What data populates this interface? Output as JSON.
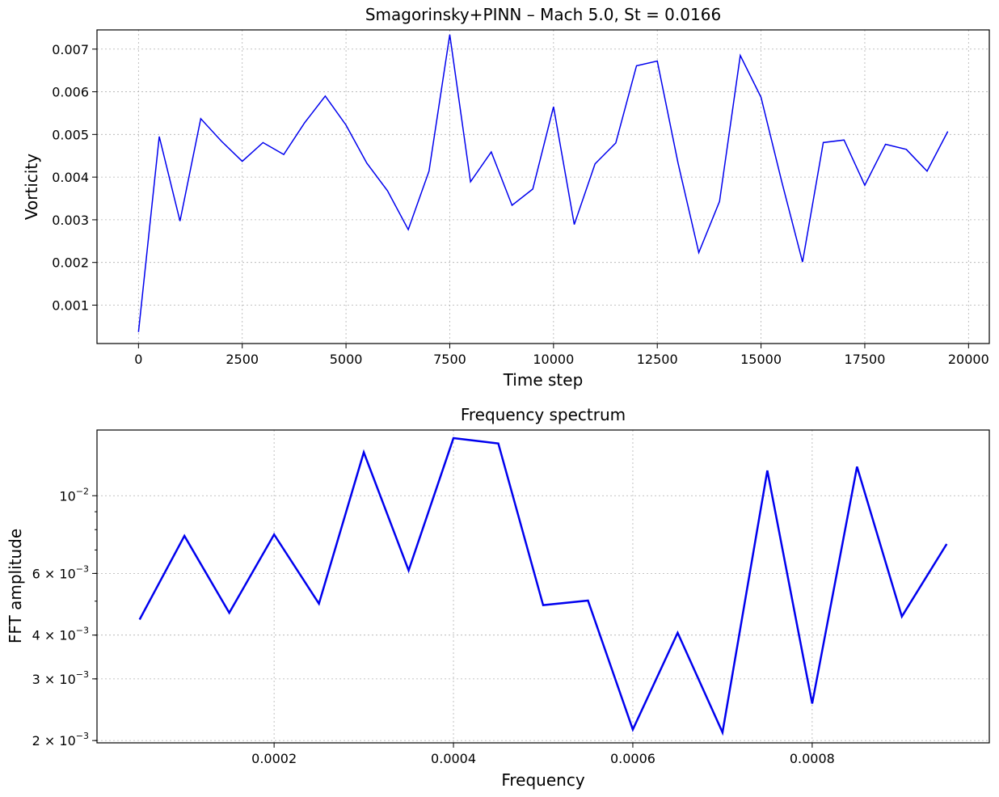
{
  "chart_data": [
    {
      "type": "line",
      "title": "Smagorinsky+PINN – Mach 5.0, St = 0.0166",
      "xlabel": "Time step",
      "ylabel": "Vorticity",
      "xlim": [
        -1000,
        20500
      ],
      "ylim": [
        0.0001,
        0.00745
      ],
      "xticks": [
        0,
        2500,
        5000,
        7500,
        10000,
        12500,
        15000,
        17500,
        20000
      ],
      "xtick_labels": [
        "0",
        "2500",
        "5000",
        "7500",
        "10000",
        "12500",
        "15000",
        "17500",
        "20000"
      ],
      "yticks": [
        0.001,
        0.002,
        0.003,
        0.004,
        0.005,
        0.006,
        0.007
      ],
      "ytick_labels": [
        "0.001",
        "0.002",
        "0.003",
        "0.004",
        "0.005",
        "0.006",
        "0.007"
      ],
      "grid": true,
      "color": "#0000ee",
      "x": [
        0,
        500,
        1000,
        1500,
        2000,
        2500,
        3000,
        3500,
        4000,
        4500,
        5000,
        5500,
        6000,
        6500,
        7000,
        7500,
        8000,
        8500,
        9000,
        9500,
        10000,
        10500,
        11000,
        11500,
        12000,
        12500,
        13000,
        13500,
        14000,
        14500,
        15000,
        15500,
        16000,
        16500,
        17000,
        17500,
        18000,
        18500,
        19000,
        19500
      ],
      "y": [
        0.00037,
        0.00495,
        0.00297,
        0.00537,
        0.00484,
        0.00437,
        0.00481,
        0.00453,
        0.00527,
        0.0059,
        0.00522,
        0.00433,
        0.00368,
        0.00277,
        0.00414,
        0.00734,
        0.00389,
        0.00459,
        0.00334,
        0.00372,
        0.00565,
        0.00289,
        0.00431,
        0.0048,
        0.00661,
        0.00672,
        0.00433,
        0.00223,
        0.00343,
        0.00685,
        0.00587,
        0.00389,
        0.00201,
        0.00481,
        0.00487,
        0.00381,
        0.00477,
        0.00465,
        0.00414,
        0.00507
      ]
    },
    {
      "type": "line",
      "title": "Frequency spectrum",
      "xlabel": "Frequency",
      "ylabel": "FFT amplitude",
      "yscale": "log",
      "xlim": [
        2.5e-06,
        0.0009975
      ],
      "ylim": [
        0.00197,
        0.0154
      ],
      "xticks": [
        0.0002,
        0.0004,
        0.0006,
        0.0008
      ],
      "xtick_labels": [
        "0.0002",
        "0.0004",
        "0.0006",
        "0.0008"
      ],
      "yticks": [
        0.002,
        0.003,
        0.004,
        0.006,
        0.01
      ],
      "ytick_labels": [
        {
          "base": "2 × 10",
          "exp": "−3"
        },
        {
          "base": "3 × 10",
          "exp": "−3"
        },
        {
          "base": "4 × 10",
          "exp": "−3"
        },
        {
          "base": "6 × 10",
          "exp": "−3"
        },
        {
          "base": "10",
          "exp": "−2"
        }
      ],
      "grid": true,
      "color": "#0000ee",
      "x": [
        5e-05,
        0.0001,
        0.00015,
        0.0002,
        0.00025,
        0.0003,
        0.00035,
        0.0004,
        0.00045,
        0.0005,
        0.00055,
        0.0006,
        0.00065,
        0.0007,
        0.00075,
        0.0008,
        0.00085,
        0.0009,
        0.00095
      ],
      "y": [
        0.00443,
        0.00768,
        0.00463,
        0.00775,
        0.00492,
        0.0133,
        0.00612,
        0.0146,
        0.0141,
        0.00487,
        0.00502,
        0.00215,
        0.00406,
        0.00211,
        0.0118,
        0.00255,
        0.0121,
        0.00452,
        0.00728
      ]
    }
  ]
}
